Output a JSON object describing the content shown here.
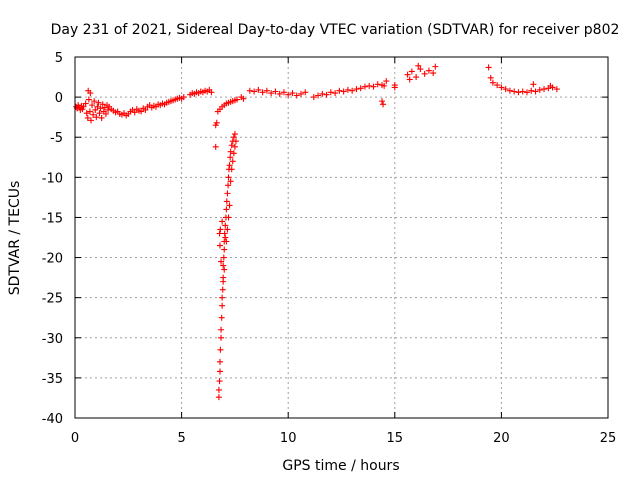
{
  "chart_data": {
    "type": "scatter",
    "title": "Day 231 of 2021, Sidereal Day-to-day VTEC variation (SDTVAR) for receiver p802",
    "xlabel": "GPS time / hours",
    "ylabel": "SDTVAR / TECUs",
    "xlim": [
      0,
      25
    ],
    "ylim": [
      -40,
      5
    ],
    "x_ticks": [
      0,
      5,
      10,
      15,
      20,
      25
    ],
    "x_tick_labels": [
      "0",
      "5",
      "10",
      "15",
      "20",
      "25"
    ],
    "y_ticks": [
      5,
      0,
      -5,
      -10,
      -15,
      -20,
      -25,
      -30,
      -35,
      -40
    ],
    "y_tick_labels": [
      "5",
      "0",
      "-5",
      "-10",
      "-15",
      "-20",
      "-25",
      "-30",
      "-35",
      "-40"
    ],
    "grid": true,
    "marker": "+",
    "color": "#ff0000",
    "series": [
      {
        "name": "SDTVAR",
        "points": [
          [
            0.05,
            -1.2
          ],
          [
            0.1,
            -1.4
          ],
          [
            0.15,
            -1.0
          ],
          [
            0.2,
            -1.3
          ],
          [
            0.25,
            -1.6
          ],
          [
            0.3,
            -1.1
          ],
          [
            0.35,
            -1.5
          ],
          [
            0.4,
            -1.2
          ],
          [
            0.5,
            -0.8
          ],
          [
            0.55,
            -2.0
          ],
          [
            0.6,
            -2.6
          ],
          [
            0.62,
            0.8
          ],
          [
            0.65,
            -0.3
          ],
          [
            0.7,
            -1.8
          ],
          [
            0.72,
            0.5
          ],
          [
            0.75,
            -2.9
          ],
          [
            0.8,
            -1.0
          ],
          [
            0.85,
            -2.2
          ],
          [
            0.9,
            -0.5
          ],
          [
            0.95,
            -1.6
          ],
          [
            1.0,
            -2.5
          ],
          [
            1.05,
            -1.2
          ],
          [
            1.1,
            -0.7
          ],
          [
            1.15,
            -2.0
          ],
          [
            1.2,
            -1.4
          ],
          [
            1.25,
            -2.6
          ],
          [
            1.3,
            -0.9
          ],
          [
            1.35,
            -1.8
          ],
          [
            1.4,
            -1.3
          ],
          [
            1.45,
            -2.1
          ],
          [
            1.5,
            -1.0
          ],
          [
            1.55,
            -1.6
          ],
          [
            1.6,
            -1.2
          ],
          [
            1.7,
            -1.5
          ],
          [
            1.8,
            -1.7
          ],
          [
            1.9,
            -1.9
          ],
          [
            2.0,
            -1.8
          ],
          [
            2.1,
            -2.1
          ],
          [
            2.2,
            -2.2
          ],
          [
            2.3,
            -2.0
          ],
          [
            2.4,
            -2.3
          ],
          [
            2.5,
            -2.1
          ],
          [
            2.6,
            -1.8
          ],
          [
            2.7,
            -1.6
          ],
          [
            2.8,
            -1.9
          ],
          [
            2.9,
            -1.5
          ],
          [
            3.0,
            -1.7
          ],
          [
            3.1,
            -1.8
          ],
          [
            3.2,
            -1.4
          ],
          [
            3.3,
            -1.6
          ],
          [
            3.4,
            -1.2
          ],
          [
            3.5,
            -1.0
          ],
          [
            3.6,
            -1.3
          ],
          [
            3.7,
            -1.1
          ],
          [
            3.8,
            -1.2
          ],
          [
            3.9,
            -0.9
          ],
          [
            4.0,
            -1.0
          ],
          [
            4.1,
            -0.8
          ],
          [
            4.2,
            -0.9
          ],
          [
            4.3,
            -0.7
          ],
          [
            4.4,
            -0.6
          ],
          [
            4.5,
            -0.5
          ],
          [
            4.6,
            -0.4
          ],
          [
            4.7,
            -0.3
          ],
          [
            4.8,
            -0.2
          ],
          [
            4.9,
            -0.1
          ],
          [
            5.0,
            -0.2
          ],
          [
            5.1,
            0.0
          ],
          [
            5.4,
            0.3
          ],
          [
            5.5,
            0.5
          ],
          [
            5.6,
            0.4
          ],
          [
            5.7,
            0.6
          ],
          [
            5.8,
            0.5
          ],
          [
            5.9,
            0.7
          ],
          [
            6.0,
            0.6
          ],
          [
            6.1,
            0.8
          ],
          [
            6.2,
            0.7
          ],
          [
            6.3,
            0.9
          ],
          [
            6.4,
            0.6
          ],
          [
            6.6,
            -3.5
          ],
          [
            6.65,
            -3.2
          ],
          [
            6.6,
            -6.2
          ],
          [
            6.7,
            -1.8
          ],
          [
            6.8,
            -1.5
          ],
          [
            6.9,
            -1.2
          ],
          [
            7.0,
            -1.0
          ],
          [
            7.1,
            -0.8
          ],
          [
            7.2,
            -0.7
          ],
          [
            7.3,
            -0.6
          ],
          [
            7.4,
            -0.5
          ],
          [
            7.5,
            -0.4
          ],
          [
            7.6,
            -0.3
          ],
          [
            7.8,
            0.0
          ],
          [
            7.9,
            -0.2
          ],
          [
            6.75,
            -37.4
          ],
          [
            6.75,
            -36.5
          ],
          [
            6.78,
            -35.4
          ],
          [
            6.8,
            -34.2
          ],
          [
            6.8,
            -33.0
          ],
          [
            6.82,
            -31.5
          ],
          [
            6.85,
            -30.0
          ],
          [
            6.85,
            -29.0
          ],
          [
            6.88,
            -27.5
          ],
          [
            6.9,
            -26.0
          ],
          [
            6.9,
            -25.0
          ],
          [
            6.93,
            -24.0
          ],
          [
            6.95,
            -22.5
          ],
          [
            6.95,
            -21.0
          ],
          [
            6.98,
            -20.0
          ],
          [
            7.0,
            -19.0
          ],
          [
            7.0,
            -18.0
          ],
          [
            7.02,
            -17.0
          ],
          [
            7.05,
            -16.0
          ],
          [
            6.85,
            -20.5
          ],
          [
            6.8,
            -18.5
          ],
          [
            6.78,
            -17.0
          ],
          [
            6.82,
            -16.5
          ],
          [
            6.9,
            -15.5
          ],
          [
            7.05,
            -17.5
          ],
          [
            7.08,
            -15.0
          ],
          [
            7.1,
            -14.0
          ],
          [
            7.12,
            -13.0
          ],
          [
            7.15,
            -12.0
          ],
          [
            7.18,
            -11.0
          ],
          [
            7.2,
            -10.0
          ],
          [
            7.22,
            -9.0
          ],
          [
            7.25,
            -8.5
          ],
          [
            7.28,
            -7.5
          ],
          [
            7.3,
            -6.8
          ],
          [
            7.35,
            -6.0
          ],
          [
            7.4,
            -5.5
          ],
          [
            7.45,
            -5.0
          ],
          [
            7.5,
            -4.6
          ],
          [
            7.25,
            -13.5
          ],
          [
            7.2,
            -15.0
          ],
          [
            7.15,
            -16.5
          ],
          [
            7.1,
            -18.0
          ],
          [
            7.0,
            -21.5
          ],
          [
            6.95,
            -23.0
          ],
          [
            7.3,
            -10.5
          ],
          [
            7.35,
            -9.0
          ],
          [
            7.4,
            -8.0
          ],
          [
            7.45,
            -7.0
          ],
          [
            7.5,
            -6.2
          ],
          [
            7.55,
            -5.5
          ],
          [
            8.2,
            0.8
          ],
          [
            8.4,
            0.7
          ],
          [
            8.6,
            0.9
          ],
          [
            8.8,
            0.6
          ],
          [
            9.0,
            0.8
          ],
          [
            9.2,
            0.5
          ],
          [
            9.4,
            0.7
          ],
          [
            9.6,
            0.4
          ],
          [
            9.8,
            0.6
          ],
          [
            10.0,
            0.3
          ],
          [
            10.2,
            0.5
          ],
          [
            10.4,
            0.2
          ],
          [
            10.6,
            0.4
          ],
          [
            10.8,
            0.6
          ],
          [
            11.2,
            0.0
          ],
          [
            11.4,
            0.2
          ],
          [
            11.6,
            0.4
          ],
          [
            11.8,
            0.3
          ],
          [
            12.0,
            0.6
          ],
          [
            12.2,
            0.5
          ],
          [
            12.4,
            0.8
          ],
          [
            12.6,
            0.7
          ],
          [
            12.8,
            0.9
          ],
          [
            13.0,
            0.8
          ],
          [
            13.2,
            1.0
          ],
          [
            13.4,
            1.1
          ],
          [
            13.6,
            1.3
          ],
          [
            13.8,
            1.4
          ],
          [
            14.0,
            1.3
          ],
          [
            14.2,
            1.6
          ],
          [
            14.4,
            1.5
          ],
          [
            14.5,
            1.4
          ],
          [
            14.4,
            -0.5
          ],
          [
            14.45,
            -0.9
          ],
          [
            14.6,
            2.0
          ],
          [
            15.0,
            1.5
          ],
          [
            15.0,
            1.2
          ],
          [
            15.6,
            2.8
          ],
          [
            15.8,
            3.2
          ],
          [
            16.0,
            2.5
          ],
          [
            16.2,
            3.5
          ],
          [
            16.4,
            2.9
          ],
          [
            16.6,
            3.3
          ],
          [
            16.8,
            3.0
          ],
          [
            16.9,
            3.8
          ],
          [
            16.1,
            3.9
          ],
          [
            15.7,
            2.2
          ],
          [
            19.4,
            3.7
          ],
          [
            19.5,
            2.4
          ],
          [
            19.6,
            1.8
          ],
          [
            19.8,
            1.5
          ],
          [
            20.0,
            1.2
          ],
          [
            20.2,
            1.0
          ],
          [
            20.4,
            0.8
          ],
          [
            20.6,
            0.7
          ],
          [
            20.8,
            0.6
          ],
          [
            21.0,
            0.7
          ],
          [
            21.2,
            0.6
          ],
          [
            21.4,
            0.8
          ],
          [
            21.6,
            0.7
          ],
          [
            21.8,
            0.9
          ],
          [
            22.0,
            1.0
          ],
          [
            22.2,
            1.1
          ],
          [
            22.4,
            1.2
          ],
          [
            22.6,
            1.0
          ],
          [
            21.5,
            1.6
          ],
          [
            22.3,
            1.4
          ]
        ]
      }
    ]
  }
}
